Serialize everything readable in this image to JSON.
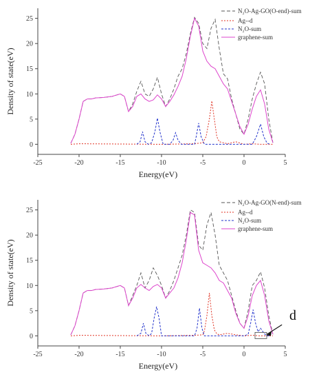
{
  "chart_data": [
    {
      "type": "line",
      "title": "",
      "xlabel": "Energy(eV)",
      "ylabel": "Density of state(eV)",
      "xlim": [
        -25,
        5
      ],
      "ylim": [
        -2,
        27
      ],
      "xticks": [
        -25,
        -20,
        -15,
        -10,
        -5,
        0,
        5
      ],
      "yticks": [
        0,
        5,
        10,
        15,
        20,
        25
      ],
      "legend_position": "top-right",
      "series": [
        {
          "name": "N₂O-Ag-GO(O-end)-sum",
          "color": "#555555",
          "dash": "5,3",
          "x": [
            -21,
            -20.5,
            -20,
            -19.5,
            -19,
            -18.5,
            -18,
            -17,
            -16,
            -15,
            -14.5,
            -14,
            -13.5,
            -13,
            -12.5,
            -12,
            -11.5,
            -11,
            -10.5,
            -10,
            -9.5,
            -9,
            -8.5,
            -8,
            -7.5,
            -7,
            -6.5,
            -6,
            -5.5,
            -5,
            -4.5,
            -4,
            -3.5,
            -3,
            -2.5,
            -2,
            -1.5,
            -1,
            -0.5,
            0,
            0.5,
            1,
            1.5,
            2,
            2.5,
            3,
            3.5
          ],
          "y": [
            0.2,
            2,
            5,
            8.5,
            9,
            9,
            9.2,
            9.3,
            9.5,
            10,
            9.5,
            6.5,
            8,
            10.5,
            12.5,
            10,
            9.5,
            11,
            13.3,
            10,
            7.5,
            9,
            11,
            13.5,
            15,
            18,
            22,
            25.2,
            24,
            20,
            19,
            23,
            24.8,
            19,
            14,
            13,
            9,
            6,
            3,
            2,
            5,
            9,
            12,
            14.3,
            12,
            5,
            0.3
          ]
        },
        {
          "name": "Ag--d",
          "color": "#e03020",
          "dash": "2,2",
          "x": [
            -21,
            -20,
            -10,
            -6,
            -5,
            -4.6,
            -4.2,
            -3.9,
            -3.6,
            -3.3,
            -3,
            -2,
            -1,
            0,
            1,
            2,
            3,
            3.5
          ],
          "y": [
            0,
            0.1,
            0,
            0.1,
            0.3,
            1.5,
            5,
            8.6,
            5,
            1.5,
            0.5,
            0.1,
            0.5,
            0,
            0.1,
            0,
            0,
            0
          ]
        },
        {
          "name": "N₂O-sum",
          "color": "#2233cc",
          "dash": "3,2",
          "x": [
            -13,
            -12.6,
            -12.3,
            -12,
            -11.6,
            -11.2,
            -10.8,
            -10.5,
            -10.2,
            -9.8,
            -9,
            -8.6,
            -8.3,
            -8,
            -7.6,
            -7,
            -6,
            -5.8,
            -5.5,
            -5.2,
            -4.8,
            -4,
            -1,
            0,
            1,
            1.5,
            2,
            2.4,
            2.8,
            3.2
          ],
          "y": [
            0,
            0.5,
            2.5,
            0.5,
            0,
            0.3,
            2.5,
            5.2,
            2.5,
            0,
            0,
            0.8,
            2.3,
            0.8,
            0,
            0,
            0,
            1.5,
            4.2,
            1.5,
            0,
            0,
            0,
            0,
            0,
            1.5,
            4,
            1.5,
            0.2,
            0
          ]
        },
        {
          "name": "graphene-sum",
          "color": "#dd44cc",
          "dash": "",
          "x": [
            -21,
            -20.5,
            -20,
            -19.5,
            -19,
            -18.5,
            -18,
            -17,
            -16,
            -15,
            -14.5,
            -14,
            -13.5,
            -13,
            -12.5,
            -12,
            -11.5,
            -11,
            -10.5,
            -10,
            -9.5,
            -9,
            -8.5,
            -8,
            -7.5,
            -7,
            -6.5,
            -6,
            -5.5,
            -5,
            -4.5,
            -4,
            -3.5,
            -3,
            -2.5,
            -2,
            -1.5,
            -1,
            -0.5,
            0,
            0.5,
            1,
            1.5,
            2,
            2.5,
            3,
            3.5
          ],
          "y": [
            0.2,
            2,
            5,
            8.5,
            9,
            9,
            9.2,
            9.3,
            9.5,
            10,
            9.5,
            6.5,
            7.5,
            9.5,
            10,
            9,
            8.5,
            8.8,
            9.8,
            9,
            7.5,
            8.5,
            9.8,
            11.5,
            13.5,
            17,
            21.5,
            25,
            23.5,
            18.5,
            16.5,
            15.5,
            15,
            13.5,
            12,
            11,
            8.5,
            6,
            3.5,
            2,
            4,
            7,
            9.5,
            10.8,
            8,
            3,
            0.3
          ]
        }
      ]
    },
    {
      "type": "line",
      "title": "",
      "xlabel": "Energy(eV)",
      "ylabel": "Density of state(eV)",
      "xlim": [
        -25,
        5
      ],
      "ylim": [
        -2,
        27
      ],
      "xticks": [
        -25,
        -20,
        -15,
        -10,
        -5,
        0,
        5
      ],
      "yticks": [
        0,
        5,
        10,
        15,
        20,
        25
      ],
      "legend_position": "top-right",
      "annotation": "d",
      "series": [
        {
          "name": "N₂O-Ag-GO(N-end)-sum",
          "color": "#555555",
          "dash": "5,3",
          "x": [
            -21,
            -20.5,
            -20,
            -19.5,
            -19,
            -18.5,
            -18,
            -17,
            -16,
            -15,
            -14.5,
            -14,
            -13.5,
            -13,
            -12.5,
            -12,
            -11.5,
            -11,
            -10.5,
            -10,
            -9.5,
            -9,
            -8.5,
            -8,
            -7.5,
            -7,
            -6.5,
            -6,
            -5.5,
            -5,
            -4.5,
            -4,
            -3.5,
            -3,
            -2.5,
            -2,
            -1.5,
            -1,
            -0.5,
            0,
            0.5,
            1,
            1.5,
            2,
            2.5,
            3,
            3.5
          ],
          "y": [
            0.2,
            2,
            5,
            8.5,
            9,
            9,
            9.2,
            9.3,
            9.5,
            10,
            9.5,
            6,
            8,
            10,
            12.5,
            9.5,
            11,
            13.5,
            12,
            10,
            7.5,
            9,
            11,
            13.5,
            16,
            20,
            25,
            24.5,
            18,
            17,
            22,
            24.5,
            20,
            14,
            12.5,
            11,
            8,
            5,
            2.5,
            1.5,
            5,
            10,
            11,
            12.7,
            9.5,
            4,
            0.3
          ]
        },
        {
          "name": "Ag--d",
          "color": "#e03020",
          "dash": "2,2",
          "x": [
            -21,
            -20,
            -10,
            -6,
            -5,
            -4.8,
            -4.5,
            -4.2,
            -3.9,
            -3.6,
            -3.3,
            -3,
            -2,
            -1,
            0,
            1,
            2,
            3,
            3.5
          ],
          "y": [
            0,
            0.1,
            0,
            0.1,
            0.2,
            1,
            4,
            8.5,
            4,
            1.2,
            0.4,
            0.2,
            0.5,
            0.2,
            0,
            0.1,
            0,
            0,
            0
          ]
        },
        {
          "name": "N₂O-sum",
          "color": "#2233cc",
          "dash": "3,2",
          "x": [
            -13,
            -12.5,
            -12.2,
            -11.9,
            -11.5,
            -11.2,
            -10.9,
            -10.6,
            -10.3,
            -10,
            -7,
            -6,
            -5.7,
            -5.4,
            -5.1,
            -4.8,
            -4,
            -1,
            0,
            0.5,
            0.8,
            1.1,
            1.4,
            1.7,
            2,
            2.3,
            2.6,
            2.9,
            3.2
          ],
          "y": [
            0,
            0.5,
            2.5,
            0.5,
            0,
            0.5,
            3.5,
            5.8,
            3.5,
            0,
            0,
            0,
            1.5,
            5.5,
            1.5,
            0,
            0,
            0,
            0,
            0.3,
            2.5,
            5.2,
            2.5,
            0.8,
            1.5,
            0.8,
            0.2,
            0,
            0
          ]
        },
        {
          "name": "graphene-sum",
          "color": "#dd44cc",
          "dash": "",
          "x": [
            -21,
            -20.5,
            -20,
            -19.5,
            -19,
            -18.5,
            -18,
            -17,
            -16,
            -15,
            -14.5,
            -14,
            -13.5,
            -13,
            -12.5,
            -12,
            -11.5,
            -11,
            -10.5,
            -10,
            -9.5,
            -9,
            -8.5,
            -8,
            -7.5,
            -7,
            -6.5,
            -6,
            -5.5,
            -5,
            -4.5,
            -4,
            -3.5,
            -3,
            -2.5,
            -2,
            -1.5,
            -1,
            -0.5,
            0,
            0.5,
            1,
            1.5,
            2,
            2.5,
            3,
            3.5
          ],
          "y": [
            0.2,
            2,
            5,
            8.5,
            9,
            9,
            9.2,
            9.3,
            9.5,
            10,
            9.5,
            6,
            7.5,
            9.5,
            10.2,
            9.5,
            9,
            9.8,
            10.2,
            9.5,
            7.5,
            8.5,
            9.5,
            11.5,
            14.5,
            19,
            24.5,
            24,
            17,
            14.5,
            14,
            13.5,
            12.5,
            11,
            10.5,
            9,
            7.5,
            4.5,
            2.5,
            1.5,
            4,
            8,
            10,
            11,
            8,
            3,
            0.3
          ]
        }
      ]
    }
  ]
}
